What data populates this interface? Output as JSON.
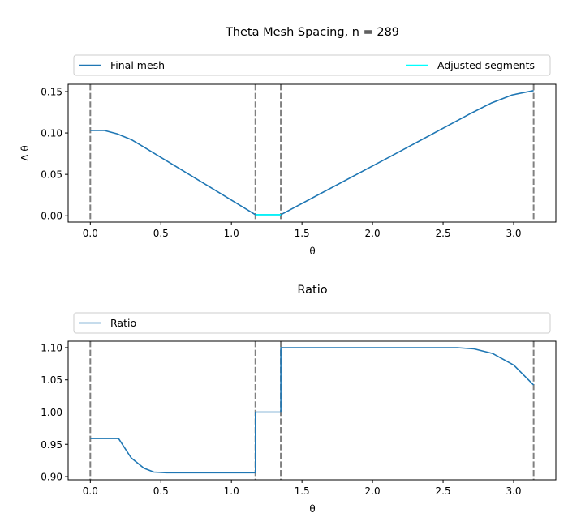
{
  "chart_data": [
    {
      "type": "line",
      "title": "Theta Mesh Spacing, n = 289",
      "xlabel": "θ",
      "ylabel": "Δ θ",
      "xlim": [
        -0.157,
        3.299
      ],
      "ylim": [
        -0.0076,
        0.1588
      ],
      "xticks": [
        "0.0",
        "0.5",
        "1.0",
        "1.5",
        "2.0",
        "2.5",
        "3.0"
      ],
      "yticks": [
        "0.00",
        "0.05",
        "0.10",
        "0.15"
      ],
      "grid": false,
      "legend": "top, above axes, expanded",
      "vlines": [
        0,
        1.17,
        1.35,
        3.1416
      ],
      "vline_color": "#808080",
      "series": [
        {
          "name": "Final mesh",
          "color": "#1f77b4",
          "x": [
            0,
            0.1,
            0.19,
            0.29,
            0.37,
            1.17,
            1.35,
            2.12,
            2.7,
            2.84,
            2.99,
            3.1416
          ],
          "y": [
            0.103,
            0.103,
            0.099,
            0.092,
            0.084,
            0.0013,
            0.0013,
            0.071,
            0.124,
            0.136,
            0.146,
            0.1512
          ]
        },
        {
          "name": "Adjusted segments",
          "color": "#00ffff",
          "x": [
            1.17,
            1.35
          ],
          "y": [
            0.0013,
            0.0013
          ]
        }
      ]
    },
    {
      "type": "line",
      "title": "Ratio",
      "xlabel": "θ",
      "ylabel": "",
      "xlim": [
        -0.157,
        3.299
      ],
      "ylim": [
        0.895,
        1.11
      ],
      "xticks": [
        "0.0",
        "0.5",
        "1.0",
        "1.5",
        "2.0",
        "2.5",
        "3.0"
      ],
      "yticks": [
        "0.90",
        "0.95",
        "1.00",
        "1.05",
        "1.10"
      ],
      "grid": false,
      "legend": "top, above axes, expanded",
      "vlines": [
        0,
        1.17,
        1.35,
        3.1416
      ],
      "vline_color": "#808080",
      "series": [
        {
          "name": "Ratio",
          "color": "#1f77b4",
          "x": [
            0,
            0.2,
            0.29,
            0.38,
            0.45,
            0.54,
            1.17,
            1.17,
            1.35,
            1.35,
            2.6,
            2.72,
            2.85,
            3.0,
            3.1416
          ],
          "y": [
            0.959,
            0.959,
            0.929,
            0.913,
            0.907,
            0.906,
            0.906,
            1.0,
            1.0,
            1.1,
            1.1,
            1.098,
            1.091,
            1.073,
            1.042
          ]
        }
      ]
    }
  ]
}
